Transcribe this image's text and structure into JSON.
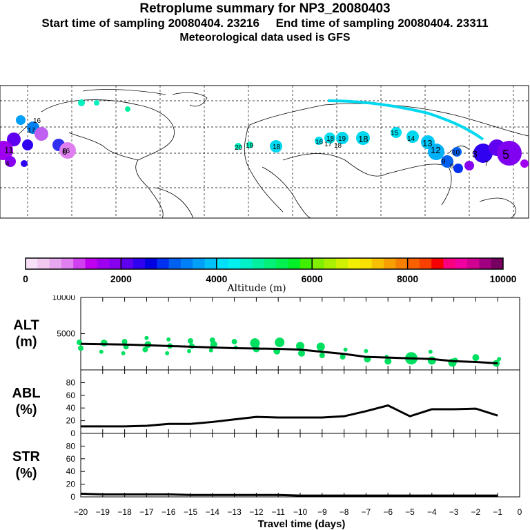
{
  "title": {
    "main": "Retroplume summary for NP3_20080403",
    "subtitle": "Start time of sampling 20080404. 23216     End time of sampling 20080404. 23311",
    "met": "Meteorological data used is GFS"
  },
  "colorbar": {
    "tick_labels": [
      "0",
      "2000",
      "4000",
      "6000",
      "8000",
      "10000"
    ],
    "axis_label": "Altitude (m)",
    "colors": [
      "#f8e0f8",
      "#f0c8f0",
      "#e8a8f0",
      "#e080f0",
      "#d040f0",
      "#c000f0",
      "#a000f0",
      "#8800f0",
      "#6000f0",
      "#3000f0",
      "#0000e0",
      "#0030f0",
      "#0060f0",
      "#0080f8",
      "#00a0f8",
      "#00c0f8",
      "#00e0f8",
      "#00f0f0",
      "#00f0c8",
      "#00f0a0",
      "#00f078",
      "#00f050",
      "#00f028",
      "#40f000",
      "#80f000",
      "#a8f000",
      "#d0f000",
      "#f0f000",
      "#f8e000",
      "#f8c000",
      "#f8a000",
      "#f88000",
      "#f86000",
      "#f84000",
      "#f80000",
      "#f80080",
      "#f000a0",
      "#d00090",
      "#a00080",
      "#780060"
    ]
  },
  "map_labels": [
    "16",
    "17",
    "18",
    "20",
    "19",
    "18",
    "16",
    "17",
    "18",
    "19",
    "16",
    "18",
    "15",
    "14",
    "13",
    "12",
    "11",
    "10",
    "9",
    "8",
    "7",
    "6",
    "5",
    "4",
    "3"
  ],
  "chart_data": [
    {
      "type": "line",
      "name": "ALT",
      "ylabel": "ALT\n(m)",
      "ylabel_lines": [
        "ALT",
        "(m)"
      ],
      "ylim": [
        0,
        10000
      ],
      "yticks": [
        0,
        5000,
        10000
      ],
      "ytick_labels": [
        "5000",
        "10000"
      ],
      "x": [
        -20,
        -19,
        -18,
        -17,
        -16,
        -15,
        -14,
        -13,
        -12,
        -11,
        -10,
        -9,
        -8,
        -7,
        -6,
        -5,
        -4,
        -3,
        -2,
        -1
      ],
      "values": [
        3600,
        3550,
        3500,
        3400,
        3300,
        3200,
        3100,
        3000,
        2950,
        2900,
        2800,
        2500,
        2200,
        1800,
        1700,
        1600,
        1500,
        1200,
        1100,
        900
      ],
      "scatter_x": [
        -20,
        -20,
        -19,
        -19,
        -18,
        -18,
        -18,
        -17,
        -17,
        -17,
        -16,
        -16,
        -16,
        -15,
        -15,
        -15,
        -14,
        -14,
        -14,
        -13,
        -13,
        -12,
        -12,
        -11,
        -11,
        -10,
        -10,
        -9,
        -9,
        -8,
        -8,
        -7,
        -7,
        -6,
        -6,
        -5,
        -4,
        -4,
        -3,
        -3,
        -2,
        -1,
        -1
      ],
      "scatter_y": [
        3800,
        3000,
        3700,
        2500,
        3900,
        3200,
        2300,
        4400,
        3500,
        2800,
        4200,
        3300,
        2300,
        4000,
        3300,
        2600,
        4100,
        3500,
        2700,
        3900,
        3100,
        3700,
        2900,
        3800,
        2600,
        3300,
        2300,
        3200,
        2000,
        2800,
        1800,
        2600,
        1500,
        1800,
        1200,
        1600,
        2500,
        1300,
        1300,
        1000,
        1700,
        1500,
        900
      ],
      "scatter_size": [
        4,
        4,
        5,
        3,
        4,
        4,
        3,
        3,
        5,
        4,
        3,
        4,
        3,
        4,
        4,
        3,
        4,
        5,
        3,
        4,
        3,
        7,
        5,
        7,
        5,
        6,
        5,
        6,
        4,
        3,
        4,
        3,
        5,
        3,
        5,
        9,
        3,
        6,
        4,
        6,
        5,
        3,
        5
      ]
    },
    {
      "type": "line",
      "name": "ABL",
      "ylabel_lines": [
        "ABL",
        "(%)"
      ],
      "ylim": [
        0,
        100
      ],
      "yticks": [
        0,
        20,
        40,
        60,
        80
      ],
      "ytick_labels": [
        "0",
        "20",
        "40",
        "60",
        "80"
      ],
      "x": [
        -20,
        -19,
        -18,
        -17,
        -16,
        -15,
        -14,
        -13,
        -12,
        -11,
        -10,
        -9,
        -8,
        -7,
        -6,
        -5,
        -4,
        -3,
        -2,
        -1
      ],
      "values": [
        11,
        11,
        11,
        12,
        15,
        15,
        18,
        22,
        26,
        25,
        25,
        25,
        27,
        35,
        44,
        27,
        38,
        38,
        39,
        28
      ]
    },
    {
      "type": "line",
      "name": "STR",
      "ylabel_lines": [
        "STR",
        "(%)"
      ],
      "ylim": [
        0,
        100
      ],
      "yticks": [
        0,
        20,
        40,
        60,
        80
      ],
      "ytick_labels": [
        "0",
        "20",
        "40",
        "60",
        "80"
      ],
      "x": [
        -20,
        -19,
        -18,
        -17,
        -16,
        -15,
        -14,
        -13,
        -12,
        -11,
        -10,
        -9,
        -8,
        -7,
        -6,
        -5,
        -4,
        -3,
        -2,
        -1
      ],
      "values": [
        5,
        4,
        4,
        4,
        4,
        3,
        3,
        3,
        3,
        3,
        2,
        2,
        2,
        2,
        2,
        2,
        2,
        2,
        2,
        2
      ]
    }
  ],
  "xaxis": {
    "xlim": [
      -20,
      0
    ],
    "ticks": [
      -20,
      -19,
      -18,
      -17,
      -16,
      -15,
      -14,
      -13,
      -12,
      -11,
      -10,
      -9,
      -8,
      -7,
      -6,
      -5,
      -4,
      -3,
      -2,
      -1,
      0
    ],
    "tick_labels": [
      "−20",
      "−19",
      "−18",
      "−17",
      "−16",
      "−15",
      "−14",
      "−13",
      "−12",
      "−11",
      "−10",
      "−9",
      "−8",
      "−7",
      "−6",
      "−5",
      "−4",
      "−3",
      "−2",
      "−1",
      "0"
    ],
    "label": "Travel time (days)"
  },
  "style": {
    "line_color": "#000000",
    "scatter_color": "#00e060"
  }
}
